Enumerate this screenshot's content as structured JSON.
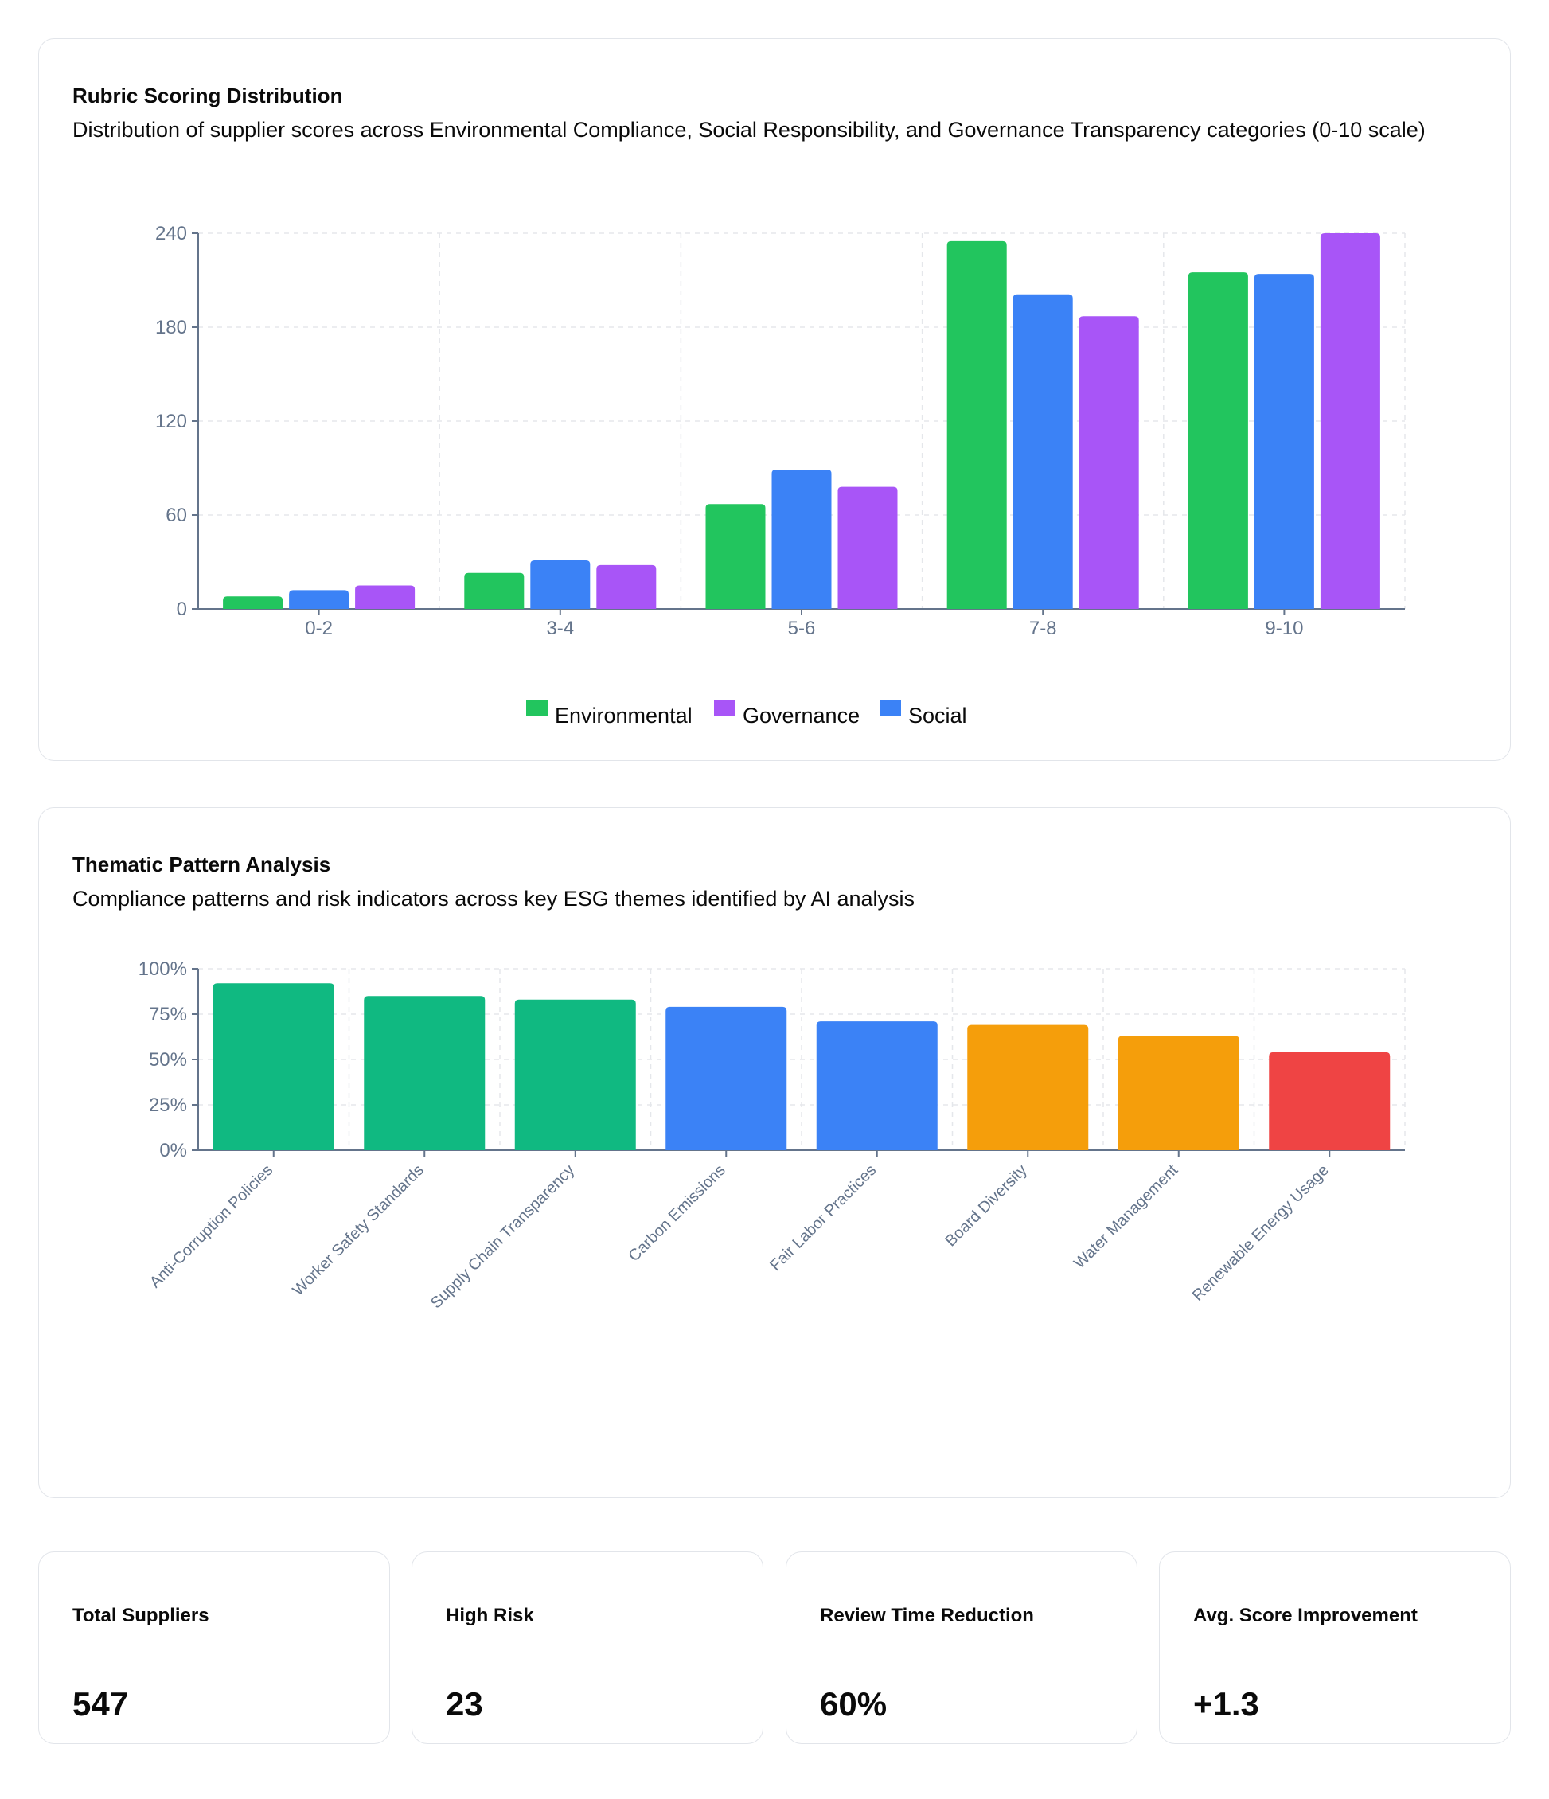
{
  "rubric": {
    "title": "Rubric Scoring Distribution",
    "description": "Distribution of supplier scores across Environmental Compliance, Social Responsibility, and Governance Transparency categories (0-10 scale)"
  },
  "thematic": {
    "title": "Thematic Pattern Analysis",
    "description": "Compliance patterns and risk indicators across key ESG themes identified by AI analysis"
  },
  "stats": [
    {
      "label": "Total Suppliers",
      "value": "547"
    },
    {
      "label": "High Risk",
      "value": "23"
    },
    {
      "label": "Review Time Reduction",
      "value": "60%"
    },
    {
      "label": "Avg. Score Improvement",
      "value": "+1.3"
    }
  ],
  "chart_data": [
    {
      "type": "bar",
      "title": "Rubric Scoring Distribution",
      "categories": [
        "0-2",
        "3-4",
        "5-6",
        "7-8",
        "9-10"
      ],
      "series": [
        {
          "name": "Environmental",
          "color": "#22c55e",
          "values": [
            8,
            23,
            67,
            235,
            215
          ]
        },
        {
          "name": "Social",
          "color": "#3b82f6",
          "values": [
            12,
            31,
            89,
            201,
            214
          ]
        },
        {
          "name": "Governance",
          "color": "#a855f7",
          "values": [
            15,
            28,
            78,
            187,
            240
          ]
        }
      ],
      "legend_order": [
        "Environmental",
        "Governance",
        "Social"
      ],
      "yticks": [
        "0",
        "60",
        "120",
        "180",
        "240"
      ],
      "ylim": [
        0,
        240
      ],
      "grid": true,
      "legend": "bottom-center"
    },
    {
      "type": "bar",
      "title": "Thematic Pattern Analysis",
      "categories": [
        "Anti-Corruption Policies",
        "Worker Safety Standards",
        "Supply Chain Transparency",
        "Carbon Emissions",
        "Fair Labor Practices",
        "Board Diversity",
        "Water Management",
        "Renewable Energy Usage"
      ],
      "values": [
        92,
        85,
        83,
        79,
        71,
        69,
        63,
        54
      ],
      "colors": [
        "#10b981",
        "#10b981",
        "#10b981",
        "#3b82f6",
        "#3b82f6",
        "#f59e0b",
        "#f59e0b",
        "#ef4444"
      ],
      "yticks": [
        "0%",
        "25%",
        "50%",
        "75%",
        "100%"
      ],
      "ylim": [
        0,
        100
      ],
      "unit": "%",
      "grid": true
    }
  ]
}
